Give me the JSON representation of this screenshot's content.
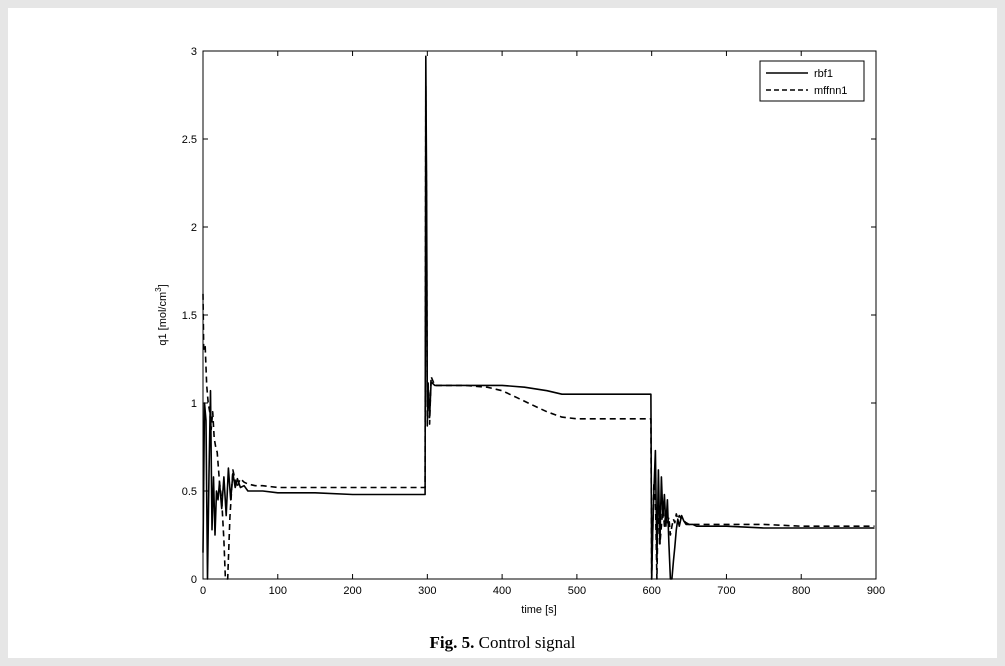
{
  "figure": {
    "caption_label": "Fig. 5.",
    "caption_text": "Control signal"
  },
  "chart_data": {
    "type": "line",
    "xlabel": "time [s]",
    "ylabel": "q1 [mol/cm",
    "ylabel_sup": "3",
    "ylabel_close": "]",
    "xlim": [
      0,
      900
    ],
    "ylim": [
      0,
      3
    ],
    "xticks": [
      0,
      100,
      200,
      300,
      400,
      500,
      600,
      700,
      800,
      900
    ],
    "yticks": [
      0,
      0.5,
      1,
      1.5,
      2,
      2.5,
      3
    ],
    "grid": false,
    "legend_position": "top-right",
    "series": [
      {
        "name": "rbf1",
        "style": "solid",
        "color": "#000000",
        "x": [
          0,
          2,
          4,
          6,
          8,
          10,
          12,
          14,
          16,
          18,
          20,
          22,
          25,
          28,
          31,
          34,
          37,
          40,
          43,
          46,
          50,
          55,
          60,
          70,
          80,
          100,
          150,
          200,
          250,
          297,
          298,
          299,
          300,
          301,
          303,
          305,
          310,
          320,
          350,
          400,
          430,
          460,
          480,
          500,
          550,
          599,
          600,
          601,
          603,
          605,
          607,
          609,
          611,
          613,
          615,
          617,
          619,
          621,
          623,
          625,
          627,
          629,
          631,
          633,
          635,
          637,
          640,
          643,
          646,
          650,
          655,
          660,
          665,
          670,
          680,
          700,
          750,
          800,
          850,
          898
        ],
        "y": [
          0.15,
          1.0,
          0.9,
          0.0,
          0.6,
          1.07,
          0.28,
          0.58,
          0.25,
          0.5,
          0.45,
          0.55,
          0.4,
          0.58,
          0.36,
          0.63,
          0.45,
          0.6,
          0.52,
          0.57,
          0.52,
          0.53,
          0.5,
          0.5,
          0.5,
          0.49,
          0.49,
          0.48,
          0.48,
          0.48,
          2.97,
          2.2,
          0.98,
          1.1,
          0.92,
          1.12,
          1.1,
          1.1,
          1.1,
          1.1,
          1.09,
          1.07,
          1.05,
          1.05,
          1.05,
          1.05,
          0.0,
          0.2,
          0.5,
          0.73,
          0.1,
          0.62,
          0.2,
          0.58,
          0.35,
          0.48,
          0.3,
          0.45,
          0.2,
          0.0,
          0.0,
          0.1,
          0.18,
          0.28,
          0.34,
          0.3,
          0.36,
          0.33,
          0.31,
          0.31,
          0.31,
          0.3,
          0.3,
          0.3,
          0.3,
          0.3,
          0.29,
          0.29,
          0.29,
          0.29
        ]
      },
      {
        "name": "mffnn1",
        "style": "dashed",
        "color": "#000000",
        "x": [
          0,
          1,
          3,
          5,
          7,
          9,
          11,
          13,
          15,
          17,
          19,
          22,
          25,
          28,
          30,
          33,
          36,
          40,
          45,
          50,
          55,
          60,
          70,
          80,
          100,
          150,
          200,
          250,
          297,
          298,
          299,
          300,
          301,
          303,
          305,
          310,
          320,
          350,
          380,
          400,
          420,
          440,
          460,
          480,
          500,
          550,
          599,
          600,
          601,
          603,
          605,
          607,
          609,
          611,
          613,
          615,
          617,
          619,
          621,
          623,
          625,
          627,
          629,
          631,
          633,
          635,
          637,
          640,
          643,
          646,
          650,
          655,
          660,
          665,
          670,
          680,
          700,
          750,
          800,
          850,
          898
        ],
        "y": [
          1.62,
          1.3,
          1.32,
          1.1,
          1.0,
          0.95,
          0.85,
          0.95,
          0.8,
          0.75,
          0.72,
          0.55,
          0.45,
          0.22,
          0.0,
          0.0,
          0.35,
          0.62,
          0.52,
          0.57,
          0.55,
          0.54,
          0.53,
          0.53,
          0.52,
          0.52,
          0.52,
          0.52,
          0.52,
          2.8,
          2.0,
          0.87,
          1.12,
          0.88,
          1.15,
          1.1,
          1.1,
          1.1,
          1.09,
          1.07,
          1.03,
          0.99,
          0.95,
          0.92,
          0.91,
          0.91,
          0.91,
          0.0,
          0.2,
          0.55,
          0.45,
          0.0,
          0.5,
          0.2,
          0.3,
          0.42,
          0.3,
          0.38,
          0.32,
          0.35,
          0.25,
          0.3,
          0.34,
          0.32,
          0.37,
          0.34,
          0.36,
          0.34,
          0.33,
          0.32,
          0.31,
          0.31,
          0.31,
          0.31,
          0.31,
          0.31,
          0.31,
          0.31,
          0.3,
          0.3,
          0.3
        ]
      }
    ]
  }
}
